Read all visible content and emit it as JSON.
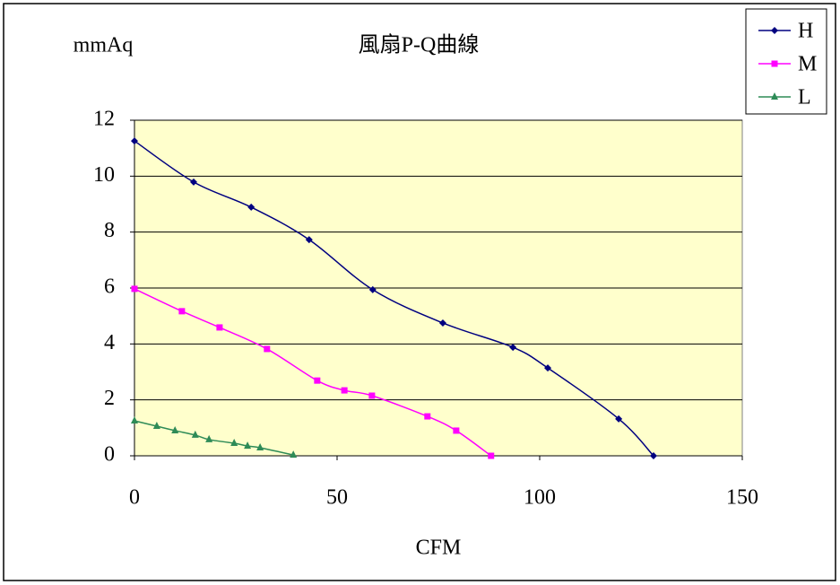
{
  "chart_data": {
    "type": "line",
    "title": "風扇P-Q曲線",
    "y_label": "mmAq",
    "x_label": "CFM",
    "xlim": [
      0,
      150
    ],
    "xticks": [
      0,
      50,
      100,
      150
    ],
    "ylim": [
      0,
      12
    ],
    "yticks": [
      0,
      2,
      4,
      6,
      8,
      10,
      12
    ],
    "grid": true,
    "legend": "top-right",
    "plot_background": "#ffffcc",
    "series": [
      {
        "name": "H",
        "color": "#000080",
        "marker": "diamond",
        "x": [
          0,
          14.6,
          28.8,
          43.1,
          58.8,
          76.1,
          93.4,
          102,
          119.5,
          128.1
        ],
        "values": [
          11.26,
          9.79,
          8.89,
          7.73,
          5.94,
          4.75,
          3.88,
          3.14,
          1.32,
          0
        ]
      },
      {
        "name": "M",
        "color": "#ff00ff",
        "marker": "square",
        "x": [
          0,
          11.7,
          21,
          32.7,
          45.1,
          51.8,
          58.6,
          72.3,
          79.4,
          88
        ],
        "values": [
          5.97,
          5.17,
          4.59,
          3.82,
          2.69,
          2.34,
          2.15,
          1.41,
          0.9,
          0
        ]
      },
      {
        "name": "L",
        "color": "#2e8b57",
        "marker": "triangle",
        "x": [
          0,
          5.5,
          10,
          15,
          18.4,
          24.6,
          27.9,
          31,
          39.2
        ],
        "values": [
          1.25,
          1.06,
          0.9,
          0.74,
          0.58,
          0.45,
          0.35,
          0.29,
          0.03
        ]
      }
    ]
  }
}
